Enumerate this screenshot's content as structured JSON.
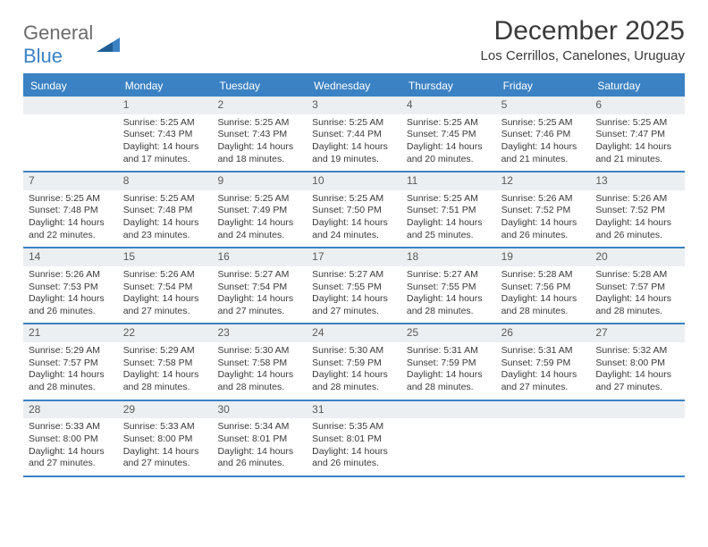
{
  "logo": {
    "part1": "General",
    "part2": "Blue"
  },
  "title": "December 2025",
  "location": "Los Cerrillos, Canelones, Uruguay",
  "colors": {
    "accent": "#3b82c4",
    "header_bg": "#eceff1",
    "text": "#3a3a3a",
    "white": "#ffffff"
  },
  "dow": [
    "Sunday",
    "Monday",
    "Tuesday",
    "Wednesday",
    "Thursday",
    "Friday",
    "Saturday"
  ],
  "weeks": [
    [
      null,
      {
        "n": "1",
        "sr": "Sunrise: 5:25 AM",
        "ss": "Sunset: 7:43 PM",
        "d1": "Daylight: 14 hours",
        "d2": "and 17 minutes."
      },
      {
        "n": "2",
        "sr": "Sunrise: 5:25 AM",
        "ss": "Sunset: 7:43 PM",
        "d1": "Daylight: 14 hours",
        "d2": "and 18 minutes."
      },
      {
        "n": "3",
        "sr": "Sunrise: 5:25 AM",
        "ss": "Sunset: 7:44 PM",
        "d1": "Daylight: 14 hours",
        "d2": "and 19 minutes."
      },
      {
        "n": "4",
        "sr": "Sunrise: 5:25 AM",
        "ss": "Sunset: 7:45 PM",
        "d1": "Daylight: 14 hours",
        "d2": "and 20 minutes."
      },
      {
        "n": "5",
        "sr": "Sunrise: 5:25 AM",
        "ss": "Sunset: 7:46 PM",
        "d1": "Daylight: 14 hours",
        "d2": "and 21 minutes."
      },
      {
        "n": "6",
        "sr": "Sunrise: 5:25 AM",
        "ss": "Sunset: 7:47 PM",
        "d1": "Daylight: 14 hours",
        "d2": "and 21 minutes."
      }
    ],
    [
      {
        "n": "7",
        "sr": "Sunrise: 5:25 AM",
        "ss": "Sunset: 7:48 PM",
        "d1": "Daylight: 14 hours",
        "d2": "and 22 minutes."
      },
      {
        "n": "8",
        "sr": "Sunrise: 5:25 AM",
        "ss": "Sunset: 7:48 PM",
        "d1": "Daylight: 14 hours",
        "d2": "and 23 minutes."
      },
      {
        "n": "9",
        "sr": "Sunrise: 5:25 AM",
        "ss": "Sunset: 7:49 PM",
        "d1": "Daylight: 14 hours",
        "d2": "and 24 minutes."
      },
      {
        "n": "10",
        "sr": "Sunrise: 5:25 AM",
        "ss": "Sunset: 7:50 PM",
        "d1": "Daylight: 14 hours",
        "d2": "and 24 minutes."
      },
      {
        "n": "11",
        "sr": "Sunrise: 5:25 AM",
        "ss": "Sunset: 7:51 PM",
        "d1": "Daylight: 14 hours",
        "d2": "and 25 minutes."
      },
      {
        "n": "12",
        "sr": "Sunrise: 5:26 AM",
        "ss": "Sunset: 7:52 PM",
        "d1": "Daylight: 14 hours",
        "d2": "and 26 minutes."
      },
      {
        "n": "13",
        "sr": "Sunrise: 5:26 AM",
        "ss": "Sunset: 7:52 PM",
        "d1": "Daylight: 14 hours",
        "d2": "and 26 minutes."
      }
    ],
    [
      {
        "n": "14",
        "sr": "Sunrise: 5:26 AM",
        "ss": "Sunset: 7:53 PM",
        "d1": "Daylight: 14 hours",
        "d2": "and 26 minutes."
      },
      {
        "n": "15",
        "sr": "Sunrise: 5:26 AM",
        "ss": "Sunset: 7:54 PM",
        "d1": "Daylight: 14 hours",
        "d2": "and 27 minutes."
      },
      {
        "n": "16",
        "sr": "Sunrise: 5:27 AM",
        "ss": "Sunset: 7:54 PM",
        "d1": "Daylight: 14 hours",
        "d2": "and 27 minutes."
      },
      {
        "n": "17",
        "sr": "Sunrise: 5:27 AM",
        "ss": "Sunset: 7:55 PM",
        "d1": "Daylight: 14 hours",
        "d2": "and 27 minutes."
      },
      {
        "n": "18",
        "sr": "Sunrise: 5:27 AM",
        "ss": "Sunset: 7:55 PM",
        "d1": "Daylight: 14 hours",
        "d2": "and 28 minutes."
      },
      {
        "n": "19",
        "sr": "Sunrise: 5:28 AM",
        "ss": "Sunset: 7:56 PM",
        "d1": "Daylight: 14 hours",
        "d2": "and 28 minutes."
      },
      {
        "n": "20",
        "sr": "Sunrise: 5:28 AM",
        "ss": "Sunset: 7:57 PM",
        "d1": "Daylight: 14 hours",
        "d2": "and 28 minutes."
      }
    ],
    [
      {
        "n": "21",
        "sr": "Sunrise: 5:29 AM",
        "ss": "Sunset: 7:57 PM",
        "d1": "Daylight: 14 hours",
        "d2": "and 28 minutes."
      },
      {
        "n": "22",
        "sr": "Sunrise: 5:29 AM",
        "ss": "Sunset: 7:58 PM",
        "d1": "Daylight: 14 hours",
        "d2": "and 28 minutes."
      },
      {
        "n": "23",
        "sr": "Sunrise: 5:30 AM",
        "ss": "Sunset: 7:58 PM",
        "d1": "Daylight: 14 hours",
        "d2": "and 28 minutes."
      },
      {
        "n": "24",
        "sr": "Sunrise: 5:30 AM",
        "ss": "Sunset: 7:59 PM",
        "d1": "Daylight: 14 hours",
        "d2": "and 28 minutes."
      },
      {
        "n": "25",
        "sr": "Sunrise: 5:31 AM",
        "ss": "Sunset: 7:59 PM",
        "d1": "Daylight: 14 hours",
        "d2": "and 28 minutes."
      },
      {
        "n": "26",
        "sr": "Sunrise: 5:31 AM",
        "ss": "Sunset: 7:59 PM",
        "d1": "Daylight: 14 hours",
        "d2": "and 27 minutes."
      },
      {
        "n": "27",
        "sr": "Sunrise: 5:32 AM",
        "ss": "Sunset: 8:00 PM",
        "d1": "Daylight: 14 hours",
        "d2": "and 27 minutes."
      }
    ],
    [
      {
        "n": "28",
        "sr": "Sunrise: 5:33 AM",
        "ss": "Sunset: 8:00 PM",
        "d1": "Daylight: 14 hours",
        "d2": "and 27 minutes."
      },
      {
        "n": "29",
        "sr": "Sunrise: 5:33 AM",
        "ss": "Sunset: 8:00 PM",
        "d1": "Daylight: 14 hours",
        "d2": "and 27 minutes."
      },
      {
        "n": "30",
        "sr": "Sunrise: 5:34 AM",
        "ss": "Sunset: 8:01 PM",
        "d1": "Daylight: 14 hours",
        "d2": "and 26 minutes."
      },
      {
        "n": "31",
        "sr": "Sunrise: 5:35 AM",
        "ss": "Sunset: 8:01 PM",
        "d1": "Daylight: 14 hours",
        "d2": "and 26 minutes."
      },
      null,
      null,
      null
    ]
  ]
}
